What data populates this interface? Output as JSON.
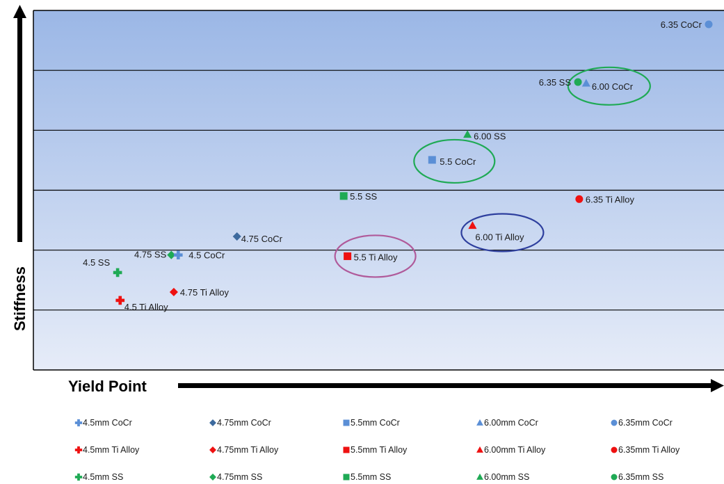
{
  "chart_data": {
    "type": "scatter",
    "title": "",
    "xlabel": "Yield Point",
    "ylabel": "Stiffness",
    "x_ticks": "none",
    "y_ticks": "none",
    "grid": "horizontal bands",
    "legend_placement": "bottom",
    "colors": {
      "CoCr": "#5b8fd6",
      "CoCr_dark": "#3d6a9e",
      "Ti Alloy": "#ee1111",
      "SS": "#1faa55",
      "band_top": "#9bb7e6",
      "band_bottom": "#e6ecf8"
    },
    "points": [
      {
        "label": "6.35 CoCr",
        "series": "6.35mm CoCr",
        "x": 100,
        "y": 100
      },
      {
        "label": "6.35 SS",
        "series": "6.35mm SS",
        "x": 79.3,
        "y": 81.3
      },
      {
        "label": "6.00 CoCr",
        "series": "6.00mm CoCr",
        "x": 80.6,
        "y": 80.9
      },
      {
        "label": "6.00 SS",
        "series": "6.00mm SS",
        "x": 61.8,
        "y": 64.3
      },
      {
        "label": "5.5 CoCr",
        "series": "5.5mm CoCr",
        "x": 56.2,
        "y": 56.1
      },
      {
        "label": "5.5 SS",
        "series": "5.5mm SS",
        "x": 42.2,
        "y": 44.4
      },
      {
        "label": "6.35 Ti Alloy",
        "series": "6.35mm Ti Alloy",
        "x": 79.5,
        "y": 43.4
      },
      {
        "label": "6.00 Ti Alloy",
        "series": "6.00mm Ti Alloy",
        "x": 62.6,
        "y": 34.8
      },
      {
        "label": "4.75 CoCr",
        "series": "4.75mm CoCr",
        "x": 25.3,
        "y": 31.3
      },
      {
        "label": "4.75 SS",
        "series": "4.75mm SS",
        "x": 14.9,
        "y": 25.3
      },
      {
        "label": "4.5 CoCr",
        "series": "4.5mm CoCr",
        "x": 16.0,
        "y": 25.3
      },
      {
        "label": "5.5 Ti Alloy",
        "series": "5.5mm Ti Alloy",
        "x": 42.8,
        "y": 24.9
      },
      {
        "label": "4.5 SS",
        "series": "4.5mm SS",
        "x": 6.4,
        "y": 19.6
      },
      {
        "label": "4.75 Ti Alloy",
        "series": "4.75mm Ti Alloy",
        "x": 15.3,
        "y": 13.3
      },
      {
        "label": "4.5 Ti Alloy",
        "series": "4.5mm Ti Alloy",
        "x": 6.8,
        "y": 10.6
      }
    ],
    "circles": [
      {
        "around": "6.00 CoCr",
        "color": "#1faa55"
      },
      {
        "around": "5.5 CoCr",
        "color": "#1faa55"
      },
      {
        "around": "6.00 Ti Alloy",
        "color": "#2e3f9e"
      },
      {
        "around": "5.5 Ti Alloy",
        "color": "#b05a9a"
      }
    ],
    "legend": [
      {
        "name": "4.5mm CoCr",
        "shape": "cross",
        "color": "#5b8fd6"
      },
      {
        "name": "4.75mm CoCr",
        "shape": "diamond",
        "color": "#3d6a9e"
      },
      {
        "name": "5.5mm CoCr",
        "shape": "square",
        "color": "#5b8fd6"
      },
      {
        "name": "6.00mm CoCr",
        "shape": "triangle",
        "color": "#5b8fd6"
      },
      {
        "name": "6.35mm CoCr",
        "shape": "circle",
        "color": "#5b8fd6"
      },
      {
        "name": "4.5mm Ti Alloy",
        "shape": "cross",
        "color": "#ee1111"
      },
      {
        "name": "4.75mm Ti Alloy",
        "shape": "diamond",
        "color": "#ee1111"
      },
      {
        "name": "5.5mm Ti Alloy",
        "shape": "square",
        "color": "#ee1111"
      },
      {
        "name": "6.00mm Ti Alloy",
        "shape": "triangle",
        "color": "#ee1111"
      },
      {
        "name": "6.35mm Ti Alloy",
        "shape": "circle",
        "color": "#ee1111"
      },
      {
        "name": "4.5mm SS",
        "shape": "cross",
        "color": "#1faa55"
      },
      {
        "name": "4.75mm SS",
        "shape": "diamond",
        "color": "#1faa55"
      },
      {
        "name": "5.5mm SS",
        "shape": "square",
        "color": "#1faa55"
      },
      {
        "name": "6.00mm SS",
        "shape": "triangle",
        "color": "#1faa55"
      },
      {
        "name": "6.35mm SS",
        "shape": "circle",
        "color": "#1faa55"
      }
    ]
  }
}
